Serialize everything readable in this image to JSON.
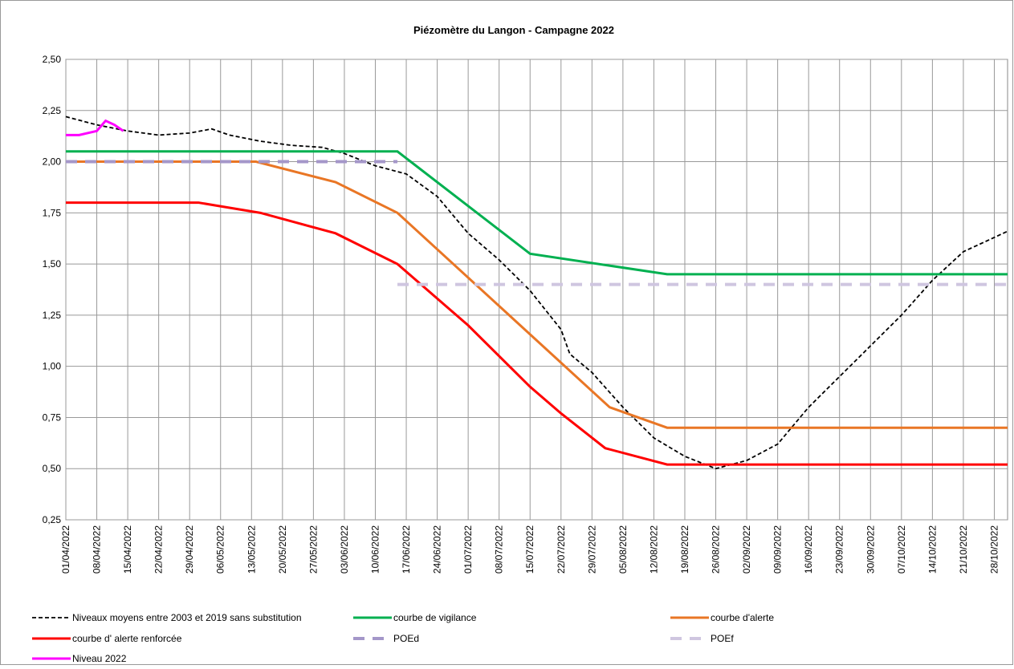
{
  "chart_data": {
    "type": "line",
    "title": "Piézomètre du Langon - Campagne 2022",
    "xlim": [
      "01/04/2022",
      "31/10/2022"
    ],
    "xticks": [
      "01/04/2022",
      "08/04/2022",
      "15/04/2022",
      "22/04/2022",
      "29/04/2022",
      "06/05/2022",
      "13/05/2022",
      "20/05/2022",
      "27/05/2022",
      "03/06/2022",
      "10/06/2022",
      "17/06/2022",
      "24/06/2022",
      "01/07/2022",
      "08/07/2022",
      "15/07/2022",
      "22/07/2022",
      "29/07/2022",
      "05/08/2022",
      "12/08/2022",
      "19/08/2022",
      "26/08/2022",
      "02/09/2022",
      "09/09/2022",
      "16/09/2022",
      "23/09/2022",
      "30/09/2022",
      "07/10/2022",
      "14/10/2022",
      "21/10/2022",
      "28/10/2022"
    ],
    "ylim": [
      0.25,
      2.5
    ],
    "yticks": [
      {
        "value": 0.25,
        "label": "0,25"
      },
      {
        "value": 0.5,
        "label": "0,50"
      },
      {
        "value": 0.75,
        "label": "0,75"
      },
      {
        "value": 1,
        "label": "1,00"
      },
      {
        "value": 1.25,
        "label": "1,25"
      },
      {
        "value": 1.5,
        "label": "1,50"
      },
      {
        "value": 1.75,
        "label": "1,75"
      },
      {
        "value": 2,
        "label": "2,00"
      },
      {
        "value": 2.25,
        "label": "2,25"
      },
      {
        "value": 2.5,
        "label": "2,50"
      }
    ],
    "grid": true,
    "legend": "bottom",
    "series": [
      {
        "name": "Niveaux moyens entre 2003 et 2019 sans substitution",
        "color": "#000000",
        "style": "dashed",
        "x": [
          "01/04/2022",
          "08/04/2022",
          "15/04/2022",
          "22/04/2022",
          "29/04/2022",
          "04/05/2022",
          "08/05/2022",
          "15/05/2022",
          "22/05/2022",
          "29/05/2022",
          "03/06/2022",
          "10/06/2022",
          "17/06/2022",
          "24/06/2022",
          "01/07/2022",
          "08/07/2022",
          "15/07/2022",
          "22/07/2022",
          "24/07/2022",
          "29/07/2022",
          "05/08/2022",
          "12/08/2022",
          "19/08/2022",
          "26/08/2022",
          "02/09/2022",
          "09/09/2022",
          "16/09/2022",
          "23/09/2022",
          "30/09/2022",
          "07/10/2022",
          "14/10/2022",
          "21/10/2022",
          "31/10/2022"
        ],
        "values": [
          2.22,
          2.18,
          2.15,
          2.13,
          2.14,
          2.16,
          2.13,
          2.1,
          2.08,
          2.07,
          2.04,
          1.98,
          1.94,
          1.83,
          1.65,
          1.52,
          1.37,
          1.18,
          1.06,
          0.97,
          0.8,
          0.65,
          0.56,
          0.5,
          0.54,
          0.62,
          0.8,
          0.95,
          1.1,
          1.25,
          1.42,
          1.56,
          1.66
        ]
      },
      {
        "name": "courbe de vigilance",
        "color": "#00b050",
        "style": "solid",
        "x": [
          "01/04/2022",
          "15/06/2022",
          "15/07/2022",
          "15/08/2022",
          "31/10/2022"
        ],
        "values": [
          2.05,
          2.05,
          1.55,
          1.45,
          1.45
        ]
      },
      {
        "name": "courbe d'alerte",
        "color": "#e97625",
        "style": "solid",
        "x": [
          "01/04/2022",
          "14/05/2022",
          "01/06/2022",
          "15/06/2022",
          "02/08/2022",
          "15/08/2022",
          "31/10/2022"
        ],
        "values": [
          2.0,
          2.0,
          1.9,
          1.75,
          0.8,
          0.7,
          0.7
        ]
      },
      {
        "name": "courbe d' alerte renforcée",
        "color": "#ff0000",
        "style": "solid",
        "x": [
          "01/04/2022",
          "01/05/2022",
          "15/05/2022",
          "01/06/2022",
          "15/06/2022",
          "01/07/2022",
          "15/07/2022",
          "22/07/2022",
          "01/08/2022",
          "15/08/2022",
          "31/10/2022"
        ],
        "values": [
          1.8,
          1.8,
          1.75,
          1.65,
          1.5,
          1.2,
          0.9,
          0.77,
          0.6,
          0.52,
          0.52
        ]
      },
      {
        "name": "POEd",
        "color": "#a497c9",
        "style": "longdash",
        "x": [
          "01/04/2022",
          "15/06/2022"
        ],
        "values": [
          2.0,
          2.0
        ]
      },
      {
        "name": "POEf",
        "color": "#cfc6e0",
        "style": "longdash",
        "x": [
          "15/06/2022",
          "31/10/2022"
        ],
        "values": [
          1.4,
          1.4
        ]
      },
      {
        "name": "Niveau 2022",
        "color": "#ff00ff",
        "style": "solid",
        "x": [
          "01/04/2022",
          "04/04/2022",
          "06/04/2022",
          "08/04/2022",
          "10/04/2022",
          "12/04/2022",
          "14/04/2022"
        ],
        "values": [
          2.13,
          2.13,
          2.14,
          2.15,
          2.2,
          2.18,
          2.15
        ]
      }
    ]
  }
}
